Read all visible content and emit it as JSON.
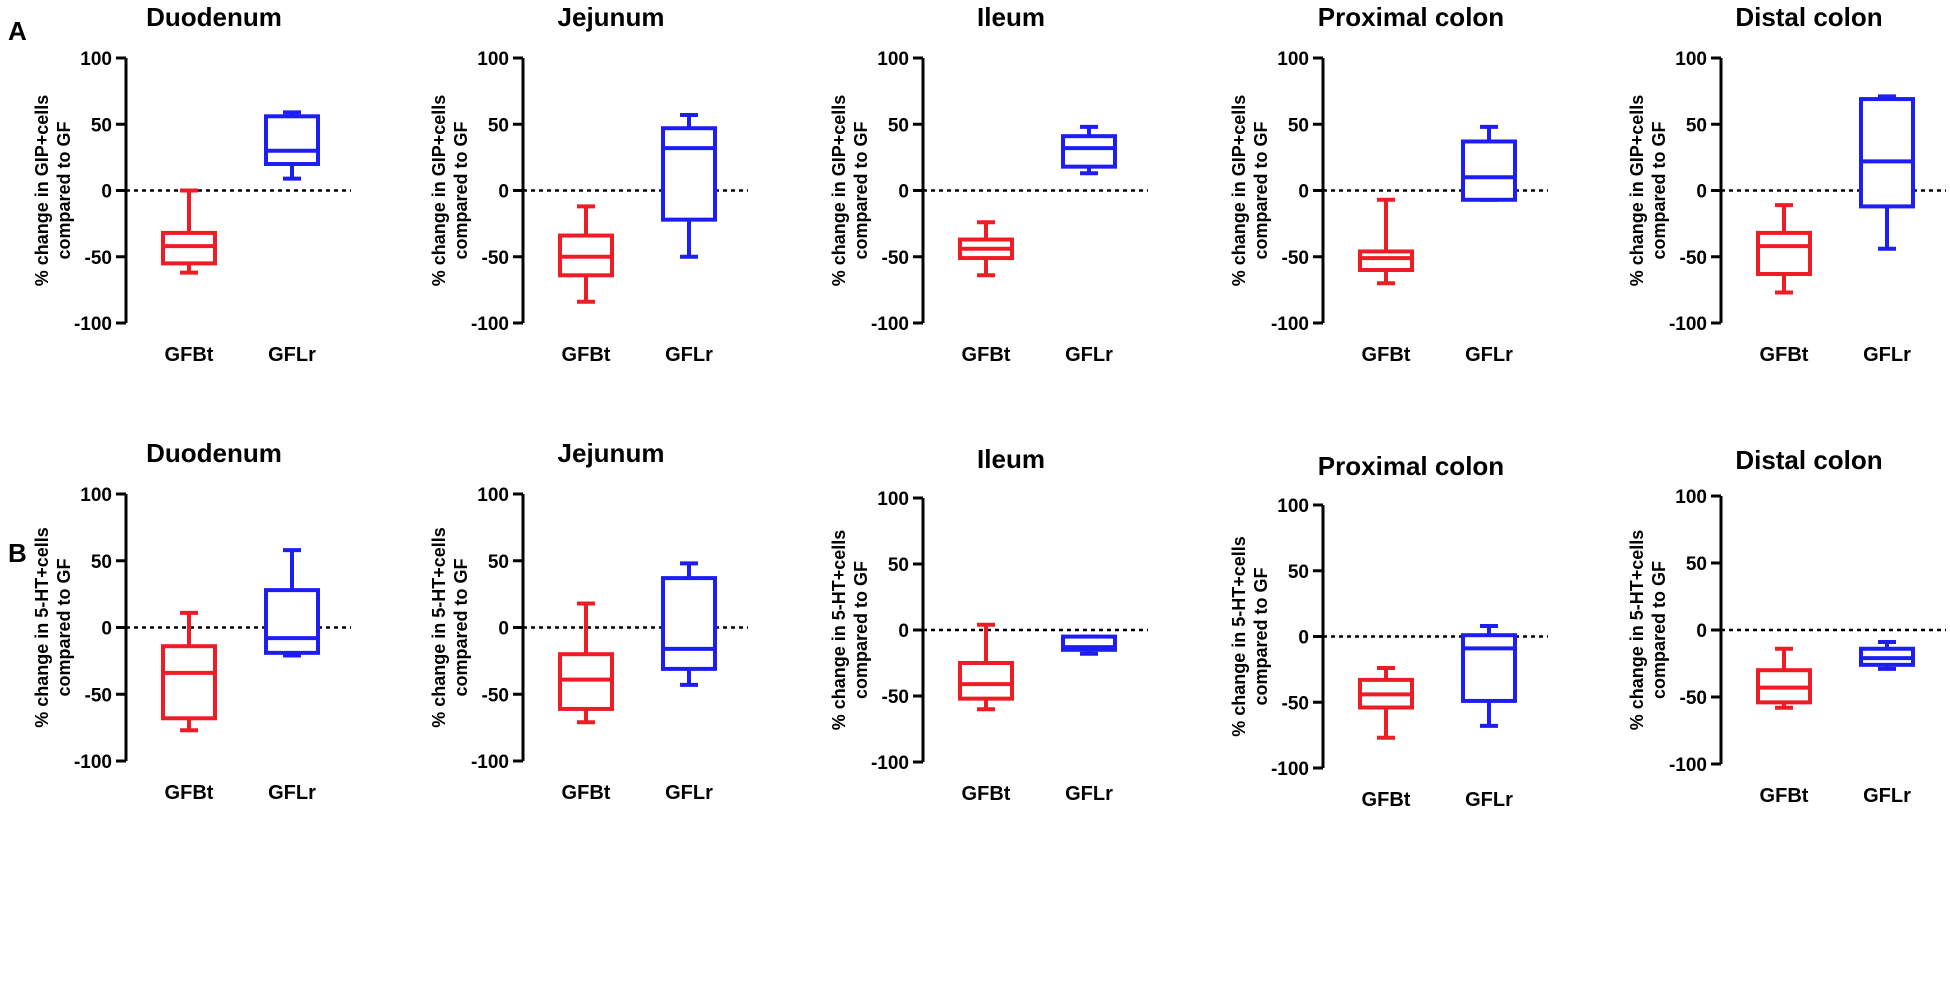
{
  "figure": {
    "panels": [
      {
        "letter": "A"
      },
      {
        "letter": "B"
      }
    ]
  },
  "chart_data": [
    {
      "type": "box",
      "panel": "A",
      "title": "Duodenum",
      "ylabel_line1": "% change in GIP+cells",
      "ylabel_line2": "compared to GF",
      "ylim": [
        -100,
        100
      ],
      "yticks": [
        "100",
        "50",
        "0",
        "-50",
        "-100"
      ],
      "reference_line_y": 0,
      "categories": [
        "GFBt",
        "GFLr"
      ],
      "series": [
        {
          "name": "GFBt",
          "color": "#ee1c25",
          "min": -62,
          "q1": -55,
          "median": -42,
          "q3": -32,
          "max": 0
        },
        {
          "name": "GFLr",
          "color": "#1d1df5",
          "min": 9,
          "q1": 20,
          "median": 30,
          "q3": 56,
          "max": 59
        }
      ]
    },
    {
      "type": "box",
      "panel": "A",
      "title": "Jejunum",
      "ylabel_line1": "% change in GIP+cells",
      "ylabel_line2": "compared to GF",
      "ylim": [
        -100,
        100
      ],
      "yticks": [
        "100",
        "50",
        "0",
        "-50",
        "-100"
      ],
      "reference_line_y": 0,
      "categories": [
        "GFBt",
        "GFLr"
      ],
      "series": [
        {
          "name": "GFBt",
          "color": "#ee1c25",
          "min": -84,
          "q1": -64,
          "median": -50,
          "q3": -34,
          "max": -12
        },
        {
          "name": "GFLr",
          "color": "#1d1df5",
          "min": -50,
          "q1": -22,
          "median": 32,
          "q3": 47,
          "max": 57
        }
      ]
    },
    {
      "type": "box",
      "panel": "A",
      "title": "Ileum",
      "ylabel_line1": "% change in GIP+cells",
      "ylabel_line2": "compared to GF",
      "ylim": [
        -100,
        100
      ],
      "yticks": [
        "100",
        "50",
        "0",
        "-50",
        "-100"
      ],
      "reference_line_y": 0,
      "categories": [
        "GFBt",
        "GFLr"
      ],
      "series": [
        {
          "name": "GFBt",
          "color": "#ee1c25",
          "min": -64,
          "q1": -51,
          "median": -44,
          "q3": -37,
          "max": -24
        },
        {
          "name": "GFLr",
          "color": "#1d1df5",
          "min": 13,
          "q1": 18,
          "median": 32,
          "q3": 41,
          "max": 48
        }
      ]
    },
    {
      "type": "box",
      "panel": "A",
      "title": "Proximal colon",
      "ylabel_line1": "% change in GIP+cells",
      "ylabel_line2": "compared to GF",
      "ylim": [
        -100,
        100
      ],
      "yticks": [
        "100",
        "50",
        "0",
        "-50",
        "-100"
      ],
      "reference_line_y": 0,
      "categories": [
        "GFBt",
        "GFLr"
      ],
      "series": [
        {
          "name": "GFBt",
          "color": "#ee1c25",
          "min": -70,
          "q1": -60,
          "median": -51,
          "q3": -46,
          "max": -7
        },
        {
          "name": "GFLr",
          "color": "#1d1df5",
          "min": -7,
          "q1": -7,
          "median": 10,
          "q3": 37,
          "max": 48
        }
      ]
    },
    {
      "type": "box",
      "panel": "A",
      "title": "Distal colon",
      "ylabel_line1": "% change in GIP+cells",
      "ylabel_line2": "compared to GF",
      "ylim": [
        -100,
        100
      ],
      "yticks": [
        "100",
        "50",
        "0",
        "-50",
        "-100"
      ],
      "reference_line_y": 0,
      "categories": [
        "GFBt",
        "GFLr"
      ],
      "series": [
        {
          "name": "GFBt",
          "color": "#ee1c25",
          "min": -77,
          "q1": -63,
          "median": -42,
          "q3": -32,
          "max": -11
        },
        {
          "name": "GFLr",
          "color": "#1d1df5",
          "min": -44,
          "q1": -12,
          "median": 22,
          "q3": 69,
          "max": 71
        }
      ]
    },
    {
      "type": "box",
      "panel": "B",
      "title": "Duodenum",
      "ylabel_line1": "% change in 5-HT+cells",
      "ylabel_line2": "compared to GF",
      "ylim": [
        -100,
        100
      ],
      "yticks": [
        "100",
        "50",
        "0",
        "-50",
        "-100"
      ],
      "reference_line_y": 0,
      "categories": [
        "GFBt",
        "GFLr"
      ],
      "series": [
        {
          "name": "GFBt",
          "color": "#ee1c25",
          "min": -77,
          "q1": -68,
          "median": -34,
          "q3": -14,
          "max": 11
        },
        {
          "name": "GFLr",
          "color": "#1d1df5",
          "min": -21,
          "q1": -19,
          "median": -8,
          "q3": 28,
          "max": 58
        }
      ]
    },
    {
      "type": "box",
      "panel": "B",
      "title": "Jejunum",
      "ylabel_line1": "% change in 5-HT+cells",
      "ylabel_line2": "compared to GF",
      "ylim": [
        -100,
        100
      ],
      "yticks": [
        "100",
        "50",
        "0",
        "-50",
        "-100"
      ],
      "reference_line_y": 0,
      "categories": [
        "GFBt",
        "GFLr"
      ],
      "series": [
        {
          "name": "GFBt",
          "color": "#ee1c25",
          "min": -71,
          "q1": -61,
          "median": -39,
          "q3": -20,
          "max": 18
        },
        {
          "name": "GFLr",
          "color": "#1d1df5",
          "min": -43,
          "q1": -31,
          "median": -16,
          "q3": 37,
          "max": 48
        }
      ]
    },
    {
      "type": "box",
      "panel": "B",
      "title": "Ileum",
      "ylabel_line1": "% change in 5-HT+cells",
      "ylabel_line2": "compared to GF",
      "ylim": [
        -100,
        100
      ],
      "yticks": [
        "100",
        "50",
        "0",
        "-50",
        "-100"
      ],
      "reference_line_y": 0,
      "categories": [
        "GFBt",
        "GFLr"
      ],
      "series": [
        {
          "name": "GFBt",
          "color": "#ee1c25",
          "min": -60,
          "q1": -52,
          "median": -41,
          "q3": -25,
          "max": 4
        },
        {
          "name": "GFLr",
          "color": "#1d1df5",
          "min": -18,
          "q1": -15,
          "median": -13,
          "q3": -5,
          "max": -5
        }
      ]
    },
    {
      "type": "box",
      "panel": "B",
      "title": "Proximal colon",
      "ylabel_line1": "% change in 5-HT+cells",
      "ylabel_line2": "compared to GF",
      "ylim": [
        -100,
        100
      ],
      "yticks": [
        "100",
        "50",
        "0",
        "-50",
        "-100"
      ],
      "reference_line_y": 0,
      "categories": [
        "GFBt",
        "GFLr"
      ],
      "series": [
        {
          "name": "GFBt",
          "color": "#ee1c25",
          "min": -77,
          "q1": -54,
          "median": -44,
          "q3": -33,
          "max": -24
        },
        {
          "name": "GFLr",
          "color": "#1d1df5",
          "min": -68,
          "q1": -49,
          "median": -9,
          "q3": 1,
          "max": 8
        }
      ]
    },
    {
      "type": "box",
      "panel": "B",
      "title": "Distal colon",
      "ylabel_line1": "% change in 5-HT+cells",
      "ylabel_line2": "compared to GF",
      "ylim": [
        -100,
        100
      ],
      "yticks": [
        "100",
        "50",
        "0",
        "-50",
        "-100"
      ],
      "reference_line_y": 0,
      "categories": [
        "GFBt",
        "GFLr"
      ],
      "series": [
        {
          "name": "GFBt",
          "color": "#ee1c25",
          "min": -58,
          "q1": -54,
          "median": -43,
          "q3": -30,
          "max": -14
        },
        {
          "name": "GFLr",
          "color": "#1d1df5",
          "min": -29,
          "q1": -26,
          "median": -21,
          "q3": -14,
          "max": -9
        }
      ]
    }
  ]
}
